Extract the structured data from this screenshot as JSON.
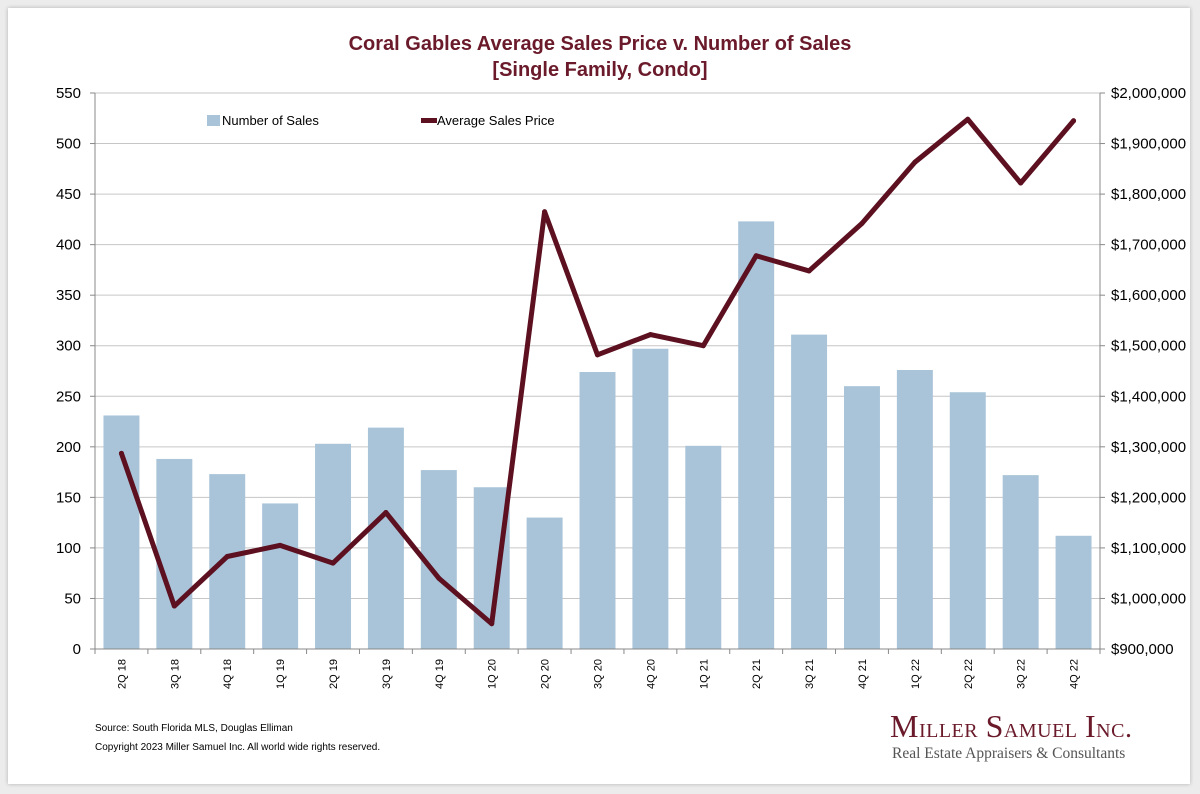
{
  "chart_data": {
    "type": "bar",
    "title": "Coral Gables Average Sales Price v. Number of Sales",
    "subtitle": "[Single Family, Condo]",
    "categories": [
      "2Q 18",
      "3Q 18",
      "4Q 18",
      "1Q 19",
      "2Q 19",
      "3Q 19",
      "4Q 19",
      "1Q 20",
      "2Q 20",
      "3Q 20",
      "4Q 20",
      "1Q 21",
      "2Q 21",
      "3Q 21",
      "4Q 21",
      "1Q 22",
      "2Q 22",
      "3Q 22",
      "4Q 22"
    ],
    "series": [
      {
        "name": "Number of Sales",
        "type": "bar",
        "axis": "left",
        "color": "#a9c4d8",
        "values": [
          231,
          188,
          173,
          144,
          203,
          219,
          177,
          160,
          130,
          274,
          297,
          201,
          423,
          311,
          260,
          276,
          254,
          172,
          112
        ]
      },
      {
        "name": "Average Sales Price",
        "type": "line",
        "axis": "right",
        "color": "#5c1020",
        "values": [
          1287000,
          985000,
          1083000,
          1105000,
          1070000,
          1170000,
          1040000,
          950000,
          1765000,
          1482000,
          1522000,
          1500000,
          1678000,
          1648000,
          1742000,
          1863000,
          1948000,
          1822000,
          1945000
        ]
      }
    ],
    "ylim_left": [
      0,
      550
    ],
    "yticks_left": [
      "0",
      "50",
      "100",
      "150",
      "200",
      "250",
      "300",
      "350",
      "400",
      "450",
      "500",
      "550"
    ],
    "ylim_right": [
      900000,
      2000000
    ],
    "yticks_right": [
      "$900,000",
      "$1,000,000",
      "$1,100,000",
      "$1,200,000",
      "$1,300,000",
      "$1,400,000",
      "$1,500,000",
      "$1,600,000",
      "$1,700,000",
      "$1,800,000",
      "$1,900,000",
      "$2,000,000"
    ],
    "grid": true,
    "legend_position": "top"
  },
  "footer": {
    "source": "Source: South Florida MLS, Douglas Elliman",
    "copyright": "Copyright 2023 Miller Samuel Inc.  All world wide rights reserved."
  },
  "logo": {
    "name": "Miller Samuel Inc.",
    "tagline": "Real Estate Appraisers & Consultants"
  }
}
